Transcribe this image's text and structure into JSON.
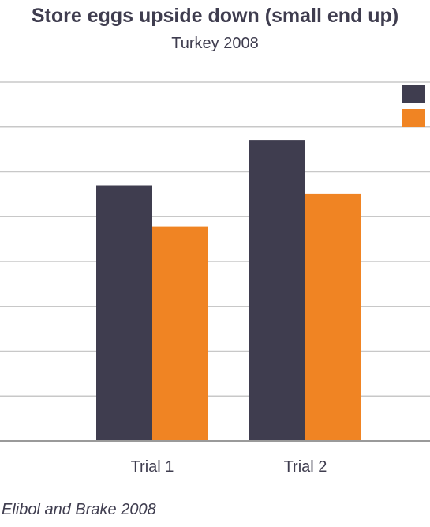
{
  "title": "Store eggs upside down (small end up)",
  "subtitle": "Turkey 2008",
  "source": "Elibol and Brake 2008",
  "colors": {
    "series1": "#3f3d4f",
    "series2": "#f08423",
    "grid": "#c8c8c8",
    "baseline": "#9a9a9a",
    "text": "#3f3d4f"
  },
  "chart_data": {
    "type": "bar",
    "title": "Store eggs upside down (small end up)",
    "subtitle": "Turkey 2008",
    "categories": [
      "Trial 1",
      "Trial 2"
    ],
    "series": [
      {
        "values": [
          6.2,
          7.3
        ]
      },
      {
        "values": [
          5.2,
          6.0
        ]
      }
    ],
    "ylim": [
      0,
      8.7
    ],
    "grid": true,
    "legend": "top-right",
    "y_tick_labels_visible": false
  }
}
